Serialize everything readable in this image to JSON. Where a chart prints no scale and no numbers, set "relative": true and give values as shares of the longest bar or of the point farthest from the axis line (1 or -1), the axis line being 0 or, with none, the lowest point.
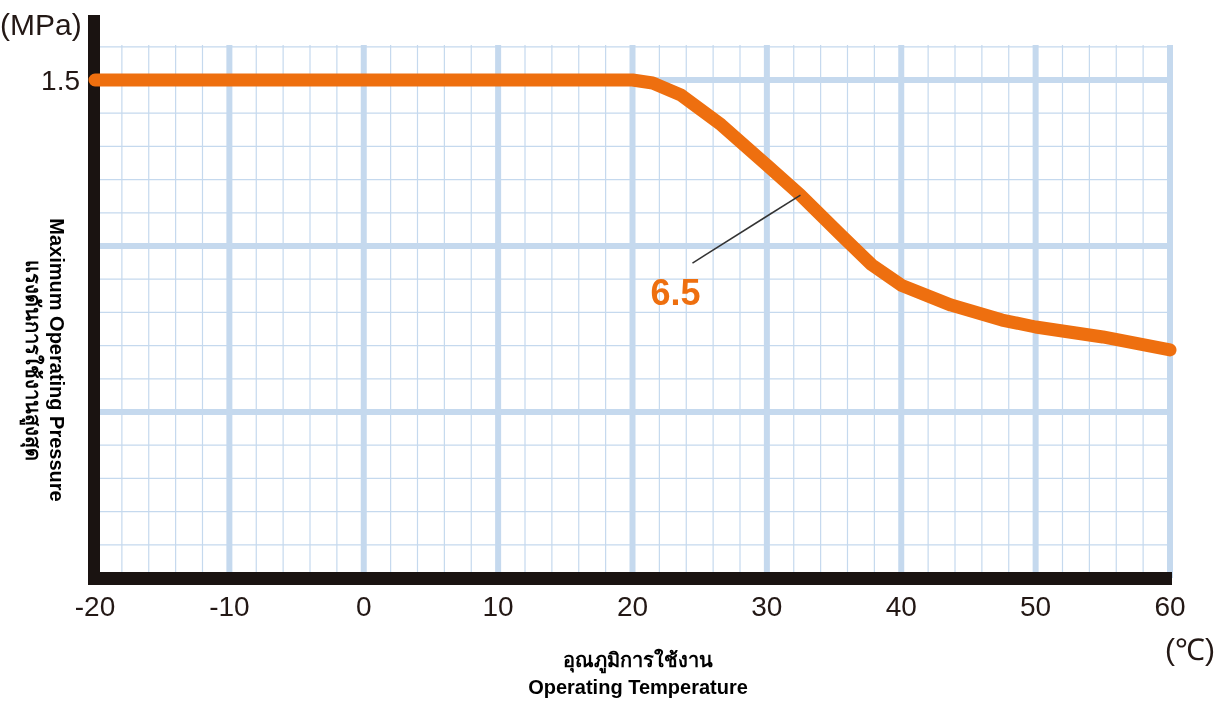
{
  "chart_data": {
    "type": "line",
    "relative": true,
    "xlabel": "อุณภูมิการใช้งาน\nOperating Temperature",
    "ylabel": "แรงดันการใช้งานสูงสุด\nMaximum Operating Pressure",
    "x": [
      -20,
      20,
      21.5,
      23.6,
      26.6,
      30,
      32.5,
      35.5,
      37.8,
      40,
      43.7,
      47.5,
      50,
      55,
      60
    ],
    "series": [
      {
        "color": "#ee6f0f",
        "values": [
          1.0,
          1.0,
          0.994,
          0.97,
          0.91,
          0.829,
          0.769,
          0.689,
          0.629,
          0.588,
          0.548,
          0.518,
          0.504,
          0.484,
          0.458
        ]
      }
    ],
    "xlim": [
      -20,
      60
    ],
    "xticks": [
      {
        "value": -20,
        "label": "-20"
      },
      {
        "value": -18,
        "label": null
      },
      {
        "value": -16,
        "label": null
      },
      {
        "value": -14,
        "label": null
      },
      {
        "value": -12,
        "label": null
      },
      -10,
      {
        "value": -8,
        "label": null
      },
      {
        "value": -6,
        "label": null
      },
      {
        "value": -4,
        "label": null
      },
      {
        "value": -2,
        "label": null
      },
      0,
      {
        "value": 2,
        "label": null
      },
      {
        "value": 4,
        "label": null
      },
      {
        "value": 6,
        "label": null
      },
      {
        "value": 8,
        "label": null
      },
      10,
      {
        "value": 12,
        "label": null
      },
      {
        "value": 14,
        "label": null
      },
      {
        "value": 16,
        "label": null
      },
      {
        "value": 18,
        "label": null
      },
      20,
      {
        "value": 22,
        "label": null
      },
      {
        "value": 24,
        "label": null
      },
      {
        "value": 26,
        "label": null
      },
      {
        "value": 28,
        "label": null
      },
      30,
      {
        "value": 32,
        "label": null
      },
      {
        "value": 34,
        "label": null
      },
      {
        "value": 36,
        "label": null
      },
      {
        "value": 38,
        "label": null
      },
      40,
      {
        "value": 42,
        "label": null
      },
      {
        "value": 44,
        "label": null
      },
      {
        "value": 46,
        "label": null
      },
      {
        "value": 48,
        "label": null
      },
      50,
      {
        "value": 52,
        "label": null
      },
      {
        "value": 54,
        "label": null
      },
      {
        "value": 56,
        "label": null
      },
      {
        "value": 58,
        "label": null
      },
      60
    ],
    "grid": true,
    "annotations": [
      "(MPa)",
      "(℃)",
      "1.5",
      {
        "text": "6.5",
        "x": 32.5,
        "y": 0.769
      }
    ]
  }
}
